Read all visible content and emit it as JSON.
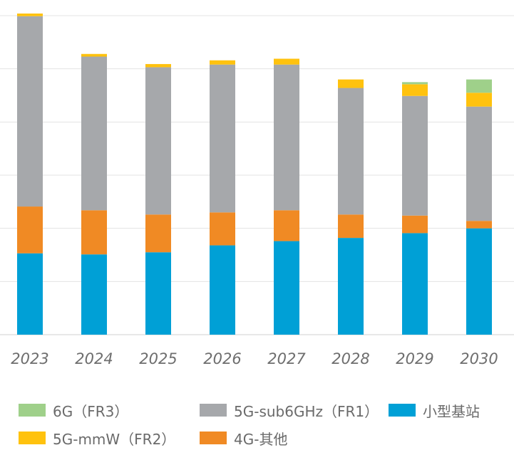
{
  "chart_data": {
    "type": "bar",
    "stacked": true,
    "categories": [
      "2023",
      "2024",
      "2025",
      "2026",
      "2027",
      "2028",
      "2029",
      "2030"
    ],
    "ylim": [
      0,
      6
    ],
    "grid": true,
    "legend_position": "bottom",
    "series": [
      {
        "name": "小型基站",
        "color": "#00a0d6",
        "values": [
          1.53,
          1.51,
          1.55,
          1.68,
          1.76,
          1.82,
          1.91,
          2.0
        ]
      },
      {
        "name": "4G-其他",
        "color": "#f08a24",
        "values": [
          0.88,
          0.83,
          0.71,
          0.62,
          0.58,
          0.44,
          0.33,
          0.14
        ]
      },
      {
        "name": "5G-sub6GHz（FR1）",
        "color": "#a6a8ab",
        "values": [
          3.58,
          2.89,
          2.77,
          2.78,
          2.74,
          2.38,
          2.25,
          2.15
        ]
      },
      {
        "name": "5G-mmW（FR2）",
        "color": "#ffc20e",
        "values": [
          0.05,
          0.05,
          0.06,
          0.08,
          0.11,
          0.16,
          0.22,
          0.26
        ]
      },
      {
        "name": "6G（FR3）",
        "color": "#9fd08a",
        "values": [
          0,
          0,
          0,
          0,
          0,
          0,
          0.04,
          0.25
        ]
      }
    ]
  },
  "legend": [
    {
      "label": "6G（FR3）",
      "color": "#9fd08a"
    },
    {
      "label": "5G-sub6GHz（FR1）",
      "color": "#a6a8ab"
    },
    {
      "label": "小型基站",
      "color": "#00a0d6"
    },
    {
      "label": "5G-mmW（FR2）",
      "color": "#ffc20e"
    },
    {
      "label": "4G-其他",
      "color": "#f08a24"
    }
  ]
}
